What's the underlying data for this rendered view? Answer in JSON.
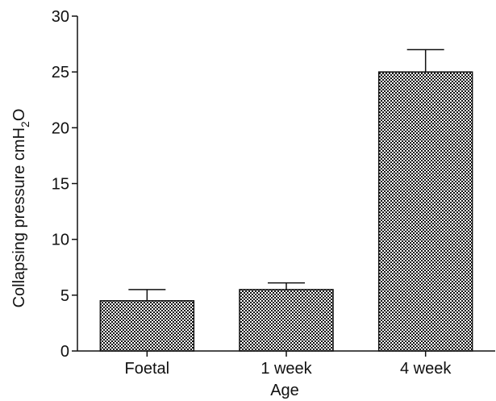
{
  "chart_data": {
    "type": "bar",
    "title": "",
    "xlabel": "Age",
    "ylabel": "Collapsing pressure cmH",
    "ylabel_subscript": "2",
    "ylabel_suffix": "O",
    "categories": [
      "Foetal",
      "1 week",
      "4 week"
    ],
    "values": [
      4.5,
      5.5,
      25.0
    ],
    "error": [
      1.0,
      0.6,
      2.0
    ],
    "ylim": [
      0,
      30
    ],
    "yticks": [
      0,
      5,
      10,
      15,
      20,
      25,
      30
    ],
    "grid": false,
    "legend": "none",
    "bar_fill": "checkered-pattern",
    "colors": {
      "bar_dark": "#111111",
      "bar_light": "#ffffff",
      "axis": "#111111"
    }
  }
}
